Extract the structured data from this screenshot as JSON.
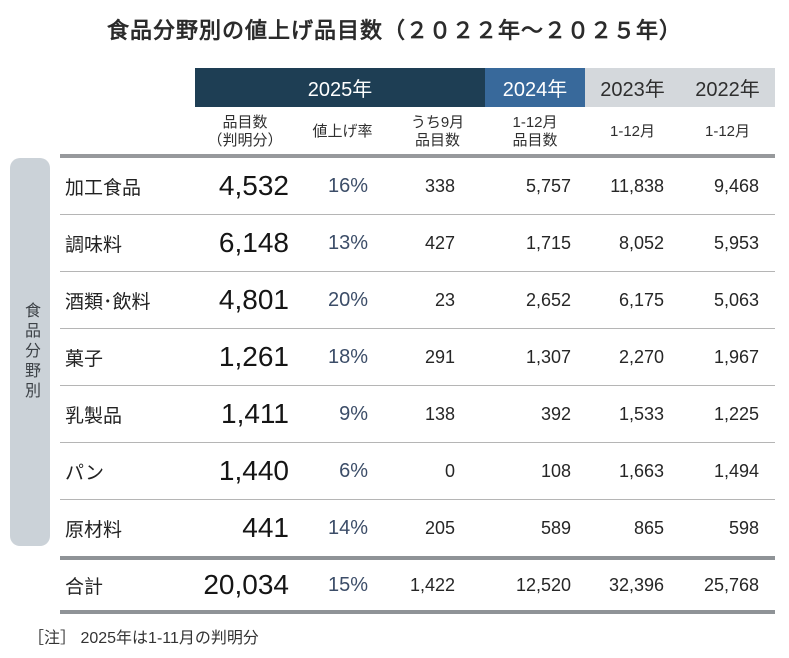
{
  "title": "食品分野別の値上げ品目数（２０２２年～２０２５年）",
  "sidebar_label": "食品分野別",
  "note": "［注］ 2025年は1-11月の判明分",
  "colors": {
    "band_2025": "#1e3e54",
    "band_2024": "#38699b",
    "band_past_years": "#d4d8dc",
    "sidebar_bg": "#cbd2d8",
    "rate_text": "#3c4d68"
  },
  "table": {
    "bands": [
      {
        "label": "2025年"
      },
      {
        "label": "2024年"
      },
      {
        "label": "2023年"
      },
      {
        "label": "2022年"
      }
    ],
    "subheads": [
      "品目数\n（判明分）",
      "値上げ率",
      "うち9月\n品目数",
      "1-12月\n品目数",
      "1-12月",
      "1-12月"
    ],
    "rows": [
      {
        "label": "加工食品",
        "values": [
          "4,532",
          "16%",
          "338",
          "5,757",
          "11,838",
          "9,468"
        ]
      },
      {
        "label": "調味料",
        "values": [
          "6,148",
          "13%",
          "427",
          "1,715",
          "8,052",
          "5,953"
        ]
      },
      {
        "label": "酒類･飲料",
        "values": [
          "4,801",
          "20%",
          "23",
          "2,652",
          "6,175",
          "5,063"
        ]
      },
      {
        "label": "菓子",
        "values": [
          "1,261",
          "18%",
          "291",
          "1,307",
          "2,270",
          "1,967"
        ]
      },
      {
        "label": "乳製品",
        "values": [
          "1,411",
          "9%",
          "138",
          "392",
          "1,533",
          "1,225"
        ]
      },
      {
        "label": "パン",
        "values": [
          "1,440",
          "6%",
          "0",
          "108",
          "1,663",
          "1,494"
        ]
      },
      {
        "label": "原材料",
        "values": [
          "441",
          "14%",
          "205",
          "589",
          "865",
          "598"
        ]
      }
    ],
    "total": {
      "label": "合計",
      "values": [
        "20,034",
        "15%",
        "1,422",
        "12,520",
        "32,396",
        "25,768"
      ]
    }
  },
  "chart_data": {
    "type": "table",
    "title": "食品分野別の値上げ品目数（２０２２年～２０２５年）",
    "column_groups": [
      {
        "label": "2025年",
        "span": 3
      },
      {
        "label": "2024年",
        "span": 1
      },
      {
        "label": "2023年",
        "span": 1
      },
      {
        "label": "2022年",
        "span": 1
      }
    ],
    "columns": [
      "品目数（判明分）",
      "値上げ率",
      "うち9月品目数",
      "1-12月品目数",
      "1-12月",
      "1-12月"
    ],
    "categories": [
      "加工食品",
      "調味料",
      "酒類･飲料",
      "菓子",
      "乳製品",
      "パン",
      "原材料"
    ],
    "rows": [
      [
        4532,
        "16%",
        338,
        5757,
        11838,
        9468
      ],
      [
        6148,
        "13%",
        427,
        1715,
        8052,
        5953
      ],
      [
        4801,
        "20%",
        23,
        2652,
        6175,
        5063
      ],
      [
        1261,
        "18%",
        291,
        1307,
        2270,
        1967
      ],
      [
        1411,
        "9%",
        138,
        392,
        1533,
        1225
      ],
      [
        1440,
        "6%",
        0,
        108,
        1663,
        1494
      ],
      [
        441,
        "14%",
        205,
        589,
        865,
        598
      ]
    ],
    "total": [
      20034,
      "15%",
      1422,
      12520,
      32396,
      25768
    ],
    "row_axis_label": "食品分野別",
    "note": "2025年は1-11月の判明分"
  }
}
